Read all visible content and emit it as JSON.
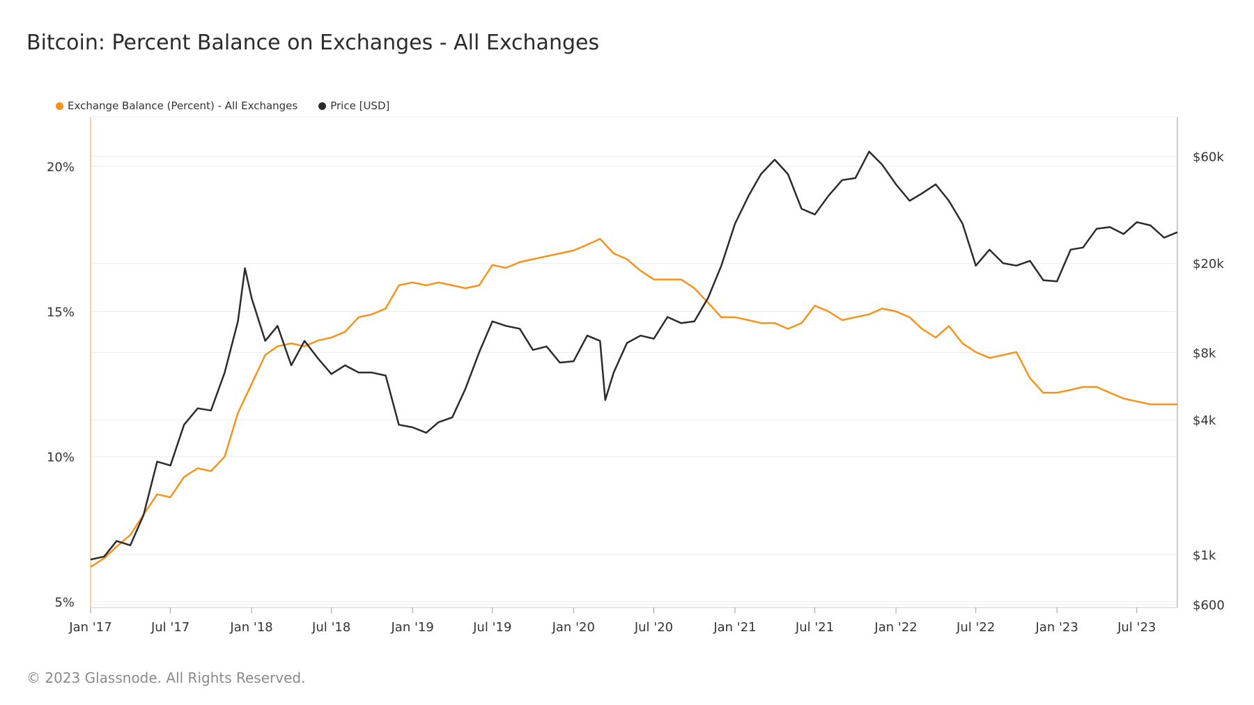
{
  "header": {
    "title": "Bitcoin: Percent Balance on Exchanges - All Exchanges"
  },
  "footer": {
    "copyright": "© 2023 Glassnode. All Rights Reserved."
  },
  "colors": {
    "balance": "#f7931a",
    "price": "#2b2b2b",
    "grid": "#ececec",
    "axis": "#cccccc"
  },
  "chart_data": {
    "type": "line",
    "title": "Bitcoin: Percent Balance on Exchanges - All Exchanges",
    "legend_position": "top-left",
    "grid": true,
    "x_range": [
      "2017-01-01",
      "2023-10-01"
    ],
    "x_ticks": [
      {
        "date": "2017-01-01",
        "label": "Jan '17"
      },
      {
        "date": "2017-07-01",
        "label": "Jul '17"
      },
      {
        "date": "2018-01-01",
        "label": "Jan '18"
      },
      {
        "date": "2018-07-01",
        "label": "Jul '18"
      },
      {
        "date": "2019-01-01",
        "label": "Jan '19"
      },
      {
        "date": "2019-07-01",
        "label": "Jul '19"
      },
      {
        "date": "2020-01-01",
        "label": "Jan '20"
      },
      {
        "date": "2020-07-01",
        "label": "Jul '20"
      },
      {
        "date": "2021-01-01",
        "label": "Jan '21"
      },
      {
        "date": "2021-07-01",
        "label": "Jul '21"
      },
      {
        "date": "2022-01-01",
        "label": "Jan '22"
      },
      {
        "date": "2022-07-01",
        "label": "Jul '22"
      },
      {
        "date": "2023-01-01",
        "label": "Jan '23"
      },
      {
        "date": "2023-07-01",
        "label": "Jul '23"
      }
    ],
    "y_left": {
      "range": [
        4.8,
        21.7
      ],
      "unit": "percent",
      "ticks": [
        {
          "value": 5,
          "label": "5%"
        },
        {
          "value": 10,
          "label": "10%"
        },
        {
          "value": 15,
          "label": "15%"
        },
        {
          "value": 20,
          "label": "20%"
        }
      ]
    },
    "y_right": {
      "scale": "log",
      "range": [
        580,
        90000
      ],
      "unit": "USD",
      "ticks": [
        {
          "value": 600,
          "label": "$600"
        },
        {
          "value": 1000,
          "label": "$1k"
        },
        {
          "value": 4000,
          "label": "$4k"
        },
        {
          "value": 8000,
          "label": "$8k"
        },
        {
          "value": 20000,
          "label": "$20k"
        },
        {
          "value": 60000,
          "label": "$60k"
        }
      ]
    },
    "series": [
      {
        "name": "Exchange Balance (Percent) - All Exchanges",
        "axis": "left",
        "color": "#f7931a",
        "points": [
          [
            "2017-01-01",
            6.2
          ],
          [
            "2017-02-01",
            6.5
          ],
          [
            "2017-03-01",
            6.9
          ],
          [
            "2017-04-01",
            7.3
          ],
          [
            "2017-05-01",
            8.0
          ],
          [
            "2017-06-01",
            8.7
          ],
          [
            "2017-07-01",
            8.6
          ],
          [
            "2017-08-01",
            9.3
          ],
          [
            "2017-09-01",
            9.6
          ],
          [
            "2017-10-01",
            9.5
          ],
          [
            "2017-11-01",
            10.0
          ],
          [
            "2017-12-01",
            11.5
          ],
          [
            "2018-01-01",
            12.5
          ],
          [
            "2018-02-01",
            13.5
          ],
          [
            "2018-03-01",
            13.8
          ],
          [
            "2018-04-01",
            13.9
          ],
          [
            "2018-05-01",
            13.8
          ],
          [
            "2018-06-01",
            14.0
          ],
          [
            "2018-07-01",
            14.1
          ],
          [
            "2018-08-01",
            14.3
          ],
          [
            "2018-09-01",
            14.8
          ],
          [
            "2018-10-01",
            14.9
          ],
          [
            "2018-11-01",
            15.1
          ],
          [
            "2018-12-01",
            15.9
          ],
          [
            "2019-01-01",
            16.0
          ],
          [
            "2019-02-01",
            15.9
          ],
          [
            "2019-03-01",
            16.0
          ],
          [
            "2019-04-01",
            15.9
          ],
          [
            "2019-05-01",
            15.8
          ],
          [
            "2019-06-01",
            15.9
          ],
          [
            "2019-07-01",
            16.6
          ],
          [
            "2019-08-01",
            16.5
          ],
          [
            "2019-09-01",
            16.7
          ],
          [
            "2019-10-01",
            16.8
          ],
          [
            "2019-11-01",
            16.9
          ],
          [
            "2019-12-01",
            17.0
          ],
          [
            "2020-01-01",
            17.1
          ],
          [
            "2020-02-01",
            17.3
          ],
          [
            "2020-03-01",
            17.5
          ],
          [
            "2020-04-01",
            17.0
          ],
          [
            "2020-05-01",
            16.8
          ],
          [
            "2020-06-01",
            16.4
          ],
          [
            "2020-07-01",
            16.1
          ],
          [
            "2020-08-01",
            16.1
          ],
          [
            "2020-09-01",
            16.1
          ],
          [
            "2020-10-01",
            15.8
          ],
          [
            "2020-11-01",
            15.3
          ],
          [
            "2020-12-01",
            14.8
          ],
          [
            "2021-01-01",
            14.8
          ],
          [
            "2021-02-01",
            14.7
          ],
          [
            "2021-03-01",
            14.6
          ],
          [
            "2021-04-01",
            14.6
          ],
          [
            "2021-05-01",
            14.4
          ],
          [
            "2021-06-01",
            14.6
          ],
          [
            "2021-07-01",
            15.2
          ],
          [
            "2021-08-01",
            15.0
          ],
          [
            "2021-09-01",
            14.7
          ],
          [
            "2021-10-01",
            14.8
          ],
          [
            "2021-11-01",
            14.9
          ],
          [
            "2021-12-01",
            15.1
          ],
          [
            "2022-01-01",
            15.0
          ],
          [
            "2022-02-01",
            14.8
          ],
          [
            "2022-03-01",
            14.4
          ],
          [
            "2022-04-01",
            14.1
          ],
          [
            "2022-05-01",
            14.5
          ],
          [
            "2022-06-01",
            13.9
          ],
          [
            "2022-07-01",
            13.6
          ],
          [
            "2022-08-01",
            13.4
          ],
          [
            "2022-09-01",
            13.5
          ],
          [
            "2022-10-01",
            13.6
          ],
          [
            "2022-11-01",
            12.7
          ],
          [
            "2022-12-01",
            12.2
          ],
          [
            "2023-01-01",
            12.2
          ],
          [
            "2023-02-01",
            12.3
          ],
          [
            "2023-03-01",
            12.4
          ],
          [
            "2023-04-01",
            12.4
          ],
          [
            "2023-05-01",
            12.2
          ],
          [
            "2023-06-01",
            12.0
          ],
          [
            "2023-07-01",
            11.9
          ],
          [
            "2023-08-01",
            11.8
          ],
          [
            "2023-09-01",
            11.8
          ],
          [
            "2023-10-01",
            11.8
          ]
        ]
      },
      {
        "name": "Price [USD]",
        "axis": "right",
        "color": "#2b2b2b",
        "points": [
          [
            "2017-01-01",
            950
          ],
          [
            "2017-02-01",
            980
          ],
          [
            "2017-03-01",
            1150
          ],
          [
            "2017-04-01",
            1100
          ],
          [
            "2017-05-01",
            1500
          ],
          [
            "2017-06-01",
            2600
          ],
          [
            "2017-07-01",
            2500
          ],
          [
            "2017-08-01",
            3800
          ],
          [
            "2017-09-01",
            4500
          ],
          [
            "2017-10-01",
            4400
          ],
          [
            "2017-11-01",
            6500
          ],
          [
            "2017-12-01",
            11000
          ],
          [
            "2017-12-17",
            19000
          ],
          [
            "2018-01-01",
            14000
          ],
          [
            "2018-02-01",
            9000
          ],
          [
            "2018-03-01",
            10500
          ],
          [
            "2018-04-01",
            7000
          ],
          [
            "2018-05-01",
            9000
          ],
          [
            "2018-06-01",
            7500
          ],
          [
            "2018-07-01",
            6400
          ],
          [
            "2018-08-01",
            7000
          ],
          [
            "2018-09-01",
            6500
          ],
          [
            "2018-10-01",
            6500
          ],
          [
            "2018-11-01",
            6300
          ],
          [
            "2018-12-01",
            3800
          ],
          [
            "2019-01-01",
            3700
          ],
          [
            "2019-02-01",
            3500
          ],
          [
            "2019-03-01",
            3900
          ],
          [
            "2019-04-01",
            4100
          ],
          [
            "2019-05-01",
            5500
          ],
          [
            "2019-06-01",
            8000
          ],
          [
            "2019-07-01",
            11000
          ],
          [
            "2019-08-01",
            10500
          ],
          [
            "2019-09-01",
            10200
          ],
          [
            "2019-10-01",
            8200
          ],
          [
            "2019-11-01",
            8500
          ],
          [
            "2019-12-01",
            7200
          ],
          [
            "2020-01-01",
            7300
          ],
          [
            "2020-02-01",
            9500
          ],
          [
            "2020-03-01",
            9000
          ],
          [
            "2020-03-13",
            4900
          ],
          [
            "2020-04-01",
            6500
          ],
          [
            "2020-05-01",
            8800
          ],
          [
            "2020-06-01",
            9500
          ],
          [
            "2020-07-01",
            9200
          ],
          [
            "2020-08-01",
            11500
          ],
          [
            "2020-09-01",
            10800
          ],
          [
            "2020-10-01",
            11000
          ],
          [
            "2020-11-01",
            14000
          ],
          [
            "2020-12-01",
            19500
          ],
          [
            "2021-01-01",
            30000
          ],
          [
            "2021-02-01",
            40000
          ],
          [
            "2021-03-01",
            50000
          ],
          [
            "2021-04-01",
            58000
          ],
          [
            "2021-05-01",
            50000
          ],
          [
            "2021-06-01",
            35000
          ],
          [
            "2021-07-01",
            33000
          ],
          [
            "2021-08-01",
            40000
          ],
          [
            "2021-09-01",
            47000
          ],
          [
            "2021-10-01",
            48000
          ],
          [
            "2021-11-01",
            63000
          ],
          [
            "2021-12-01",
            55000
          ],
          [
            "2022-01-01",
            45000
          ],
          [
            "2022-02-01",
            38000
          ],
          [
            "2022-03-01",
            41000
          ],
          [
            "2022-04-01",
            45000
          ],
          [
            "2022-05-01",
            38000
          ],
          [
            "2022-06-01",
            30000
          ],
          [
            "2022-07-01",
            19500
          ],
          [
            "2022-08-01",
            23000
          ],
          [
            "2022-09-01",
            20000
          ],
          [
            "2022-10-01",
            19500
          ],
          [
            "2022-11-01",
            20500
          ],
          [
            "2022-12-01",
            16800
          ],
          [
            "2023-01-01",
            16600
          ],
          [
            "2023-02-01",
            23000
          ],
          [
            "2023-03-01",
            23500
          ],
          [
            "2023-04-01",
            28500
          ],
          [
            "2023-05-01",
            29000
          ],
          [
            "2023-06-01",
            27000
          ],
          [
            "2023-07-01",
            30500
          ],
          [
            "2023-08-01",
            29500
          ],
          [
            "2023-09-01",
            26000
          ],
          [
            "2023-10-01",
            27500
          ]
        ]
      }
    ]
  }
}
